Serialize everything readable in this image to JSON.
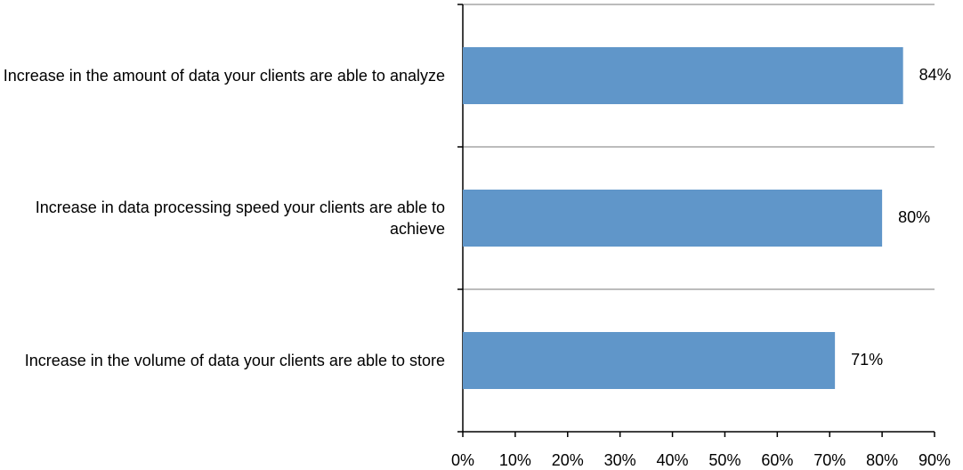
{
  "chart_data": {
    "type": "bar",
    "orientation": "horizontal",
    "categories": [
      "Increase in the amount of data your clients are able to analyze",
      "Increase in data processing speed your clients are able to achieve",
      "Increase in the volume of data your clients are able to store"
    ],
    "values": [
      84,
      80,
      71
    ],
    "value_labels": [
      "84%",
      "80%",
      "71%"
    ],
    "color": "#6096c9",
    "xlim": [
      0,
      90
    ],
    "xticks": [
      {
        "value": 0,
        "label": "0%"
      },
      {
        "value": 10,
        "label": "10%"
      },
      {
        "value": 20,
        "label": "20%"
      },
      {
        "value": 30,
        "label": "30%"
      },
      {
        "value": 40,
        "label": "40%"
      },
      {
        "value": 50,
        "label": "50%"
      },
      {
        "value": 60,
        "label": "60%"
      },
      {
        "value": 70,
        "label": "70%"
      },
      {
        "value": 80,
        "label": "80%"
      },
      {
        "value": 90,
        "label": "90%"
      }
    ]
  }
}
